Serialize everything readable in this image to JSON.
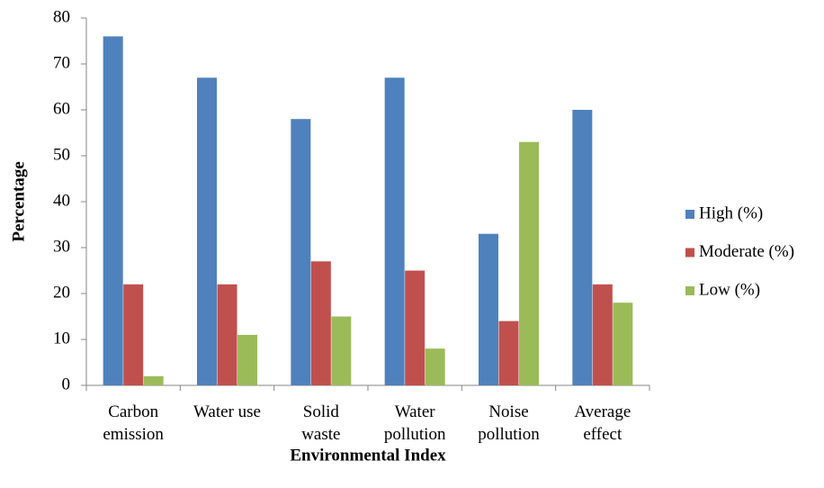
{
  "chart_data": {
    "type": "bar",
    "x_label": "Environmental Index",
    "y_label": "Percentage",
    "categories": [
      "Carbon\nemission",
      "Water use",
      "Solid\nwaste",
      "Water\npollution",
      "Noise\npollution",
      "Average\neffect"
    ],
    "series": [
      {
        "name": "High (%)",
        "color": "#4f81bd",
        "values": [
          76,
          67,
          58,
          67,
          33,
          60
        ]
      },
      {
        "name": "Moderate (%)",
        "color": "#c0504d",
        "values": [
          22,
          22,
          27,
          25,
          14,
          22
        ]
      },
      {
        "name": "Low (%)",
        "color": "#9bbb59",
        "values": [
          2,
          11,
          15,
          8,
          53,
          18
        ]
      }
    ],
    "ylim": [
      0,
      80
    ],
    "yticks": [
      0,
      10,
      20,
      30,
      40,
      50,
      60,
      70,
      80
    ],
    "grid": false,
    "legend": "right"
  }
}
